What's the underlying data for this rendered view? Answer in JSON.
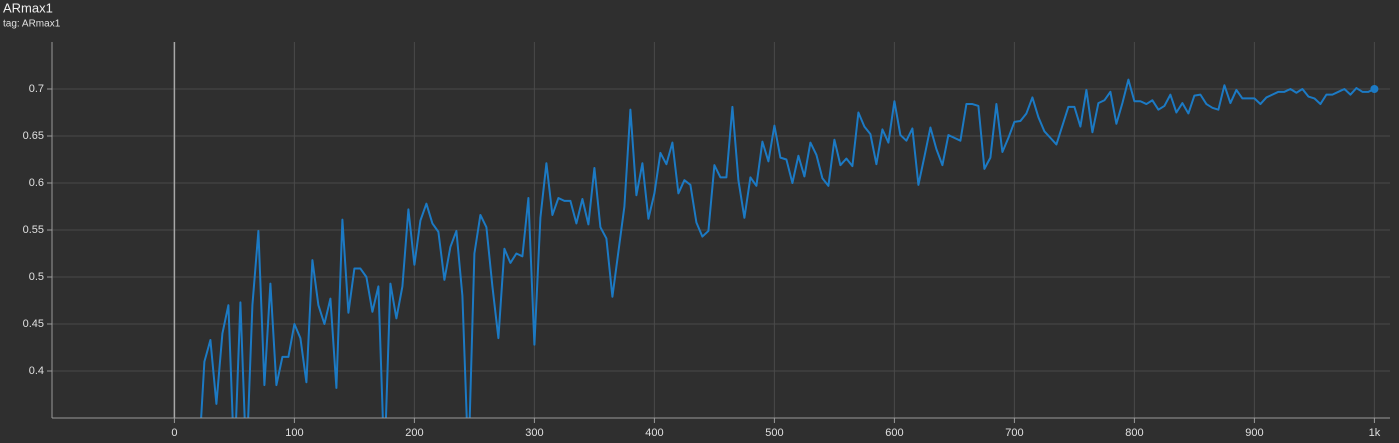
{
  "chart_data": {
    "type": "line",
    "title": "ARmax1",
    "subtitle": "tag: ARmax1",
    "x": [
      20,
      25,
      30,
      35,
      40,
      45,
      50,
      55,
      60,
      65,
      70,
      75,
      80,
      85,
      90,
      95,
      100,
      105,
      110,
      115,
      120,
      125,
      130,
      135,
      140,
      145,
      150,
      155,
      160,
      165,
      170,
      175,
      180,
      185,
      190,
      195,
      200,
      205,
      210,
      215,
      220,
      225,
      230,
      235,
      240,
      245,
      250,
      255,
      260,
      265,
      270,
      275,
      280,
      285,
      290,
      295,
      300,
      305,
      310,
      315,
      320,
      325,
      330,
      335,
      340,
      345,
      350,
      355,
      360,
      365,
      370,
      375,
      380,
      385,
      390,
      395,
      400,
      405,
      410,
      415,
      420,
      425,
      430,
      435,
      440,
      445,
      450,
      455,
      460,
      465,
      470,
      475,
      480,
      485,
      490,
      495,
      500,
      505,
      510,
      515,
      520,
      525,
      530,
      535,
      540,
      545,
      550,
      555,
      560,
      565,
      570,
      575,
      580,
      585,
      590,
      595,
      600,
      605,
      610,
      615,
      620,
      625,
      630,
      635,
      640,
      645,
      650,
      655,
      660,
      665,
      670,
      675,
      680,
      685,
      690,
      695,
      700,
      705,
      710,
      715,
      720,
      725,
      730,
      735,
      740,
      745,
      750,
      755,
      760,
      765,
      770,
      775,
      780,
      785,
      790,
      795,
      800,
      805,
      810,
      815,
      820,
      825,
      830,
      835,
      840,
      845,
      850,
      855,
      860,
      865,
      870,
      875,
      880,
      885,
      890,
      895,
      900,
      905,
      910,
      915,
      920,
      925,
      930,
      935,
      940,
      945,
      950,
      955,
      960,
      965,
      970,
      975,
      980,
      985,
      990,
      995,
      1000
    ],
    "series": [
      {
        "name": "ARmax1",
        "color": "#1c7ac4",
        "values": [
          0.3,
          0.41,
          0.433,
          0.365,
          0.44,
          0.47,
          0.3,
          0.473,
          0.3,
          0.47,
          0.549,
          0.385,
          0.493,
          0.385,
          0.415,
          0.415,
          0.45,
          0.435,
          0.388,
          0.518,
          0.47,
          0.45,
          0.477,
          0.382,
          0.561,
          0.462,
          0.509,
          0.509,
          0.5,
          0.463,
          0.49,
          0.3,
          0.493,
          0.456,
          0.49,
          0.572,
          0.513,
          0.56,
          0.578,
          0.557,
          0.548,
          0.497,
          0.532,
          0.549,
          0.48,
          0.3,
          0.525,
          0.566,
          0.553,
          0.49,
          0.435,
          0.53,
          0.515,
          0.525,
          0.522,
          0.584,
          0.428,
          0.563,
          0.621,
          0.566,
          0.584,
          0.581,
          0.581,
          0.557,
          0.583,
          0.556,
          0.616,
          0.553,
          0.541,
          0.479,
          0.527,
          0.575,
          0.678,
          0.587,
          0.621,
          0.562,
          0.589,
          0.632,
          0.62,
          0.643,
          0.589,
          0.603,
          0.598,
          0.558,
          0.543,
          0.549,
          0.619,
          0.606,
          0.606,
          0.681,
          0.603,
          0.563,
          0.606,
          0.597,
          0.644,
          0.623,
          0.661,
          0.627,
          0.625,
          0.6,
          0.629,
          0.607,
          0.643,
          0.63,
          0.605,
          0.597,
          0.646,
          0.619,
          0.626,
          0.618,
          0.675,
          0.66,
          0.652,
          0.62,
          0.657,
          0.643,
          0.687,
          0.651,
          0.645,
          0.658,
          0.598,
          0.628,
          0.659,
          0.636,
          0.619,
          0.651,
          0.648,
          0.645,
          0.684,
          0.684,
          0.682,
          0.615,
          0.627,
          0.684,
          0.633,
          0.648,
          0.665,
          0.666,
          0.674,
          0.691,
          0.67,
          0.655,
          0.648,
          0.641,
          0.661,
          0.681,
          0.681,
          0.66,
          0.699,
          0.654,
          0.685,
          0.688,
          0.697,
          0.663,
          0.685,
          0.71,
          0.687,
          0.687,
          0.684,
          0.688,
          0.678,
          0.682,
          0.694,
          0.675,
          0.685,
          0.674,
          0.693,
          0.694,
          0.684,
          0.68,
          0.678,
          0.704,
          0.685,
          0.699,
          0.69,
          0.69,
          0.69,
          0.684,
          0.691,
          0.694,
          0.697,
          0.697,
          0.7,
          0.696,
          0.7,
          0.692,
          0.69,
          0.684,
          0.694,
          0.694,
          0.697,
          0.7,
          0.694,
          0.701,
          0.697,
          0.697,
          0.7
        ]
      }
    ],
    "xlim": [
      -102,
      1013
    ],
    "ylim": [
      0.35,
      0.75
    ],
    "xticks": [
      0,
      100,
      200,
      300,
      400,
      500,
      600,
      700,
      800,
      900,
      {
        "value": 1000,
        "label": "1k"
      }
    ],
    "yticks": [
      0.4,
      0.45,
      0.5,
      0.55,
      0.6,
      0.65,
      0.7
    ],
    "grid": true
  }
}
